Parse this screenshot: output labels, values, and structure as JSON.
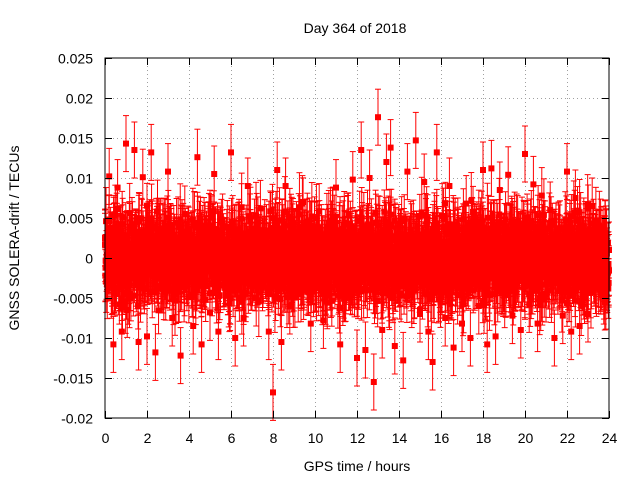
{
  "chart_data": {
    "type": "scatter",
    "title": "Day 364 of 2018",
    "xlabel": "GPS time / hours",
    "ylabel": "GNSS SOLERA-drift / TECUs",
    "xlim": [
      0,
      24
    ],
    "ylim": [
      -0.02,
      0.025
    ],
    "x_ticks": [
      0,
      2,
      4,
      6,
      8,
      10,
      12,
      14,
      16,
      18,
      20,
      22,
      24
    ],
    "x_tick_labels": [
      "0",
      "2",
      "4",
      "6",
      "8",
      "10",
      "12",
      "14",
      "16",
      "18",
      "20",
      "22",
      "24"
    ],
    "y_ticks": [
      -0.02,
      -0.015,
      -0.01,
      -0.005,
      0,
      0.005,
      0.01,
      0.015,
      0.02,
      0.025
    ],
    "y_tick_labels": [
      "-0.02",
      "-0.015",
      "-0.01",
      "-0.005",
      "0",
      "0.005",
      "0.01",
      "0.015",
      "0.02",
      "0.025"
    ],
    "grid": true,
    "legend": "none",
    "series_color": "#ff0000",
    "marker": "square",
    "sampling_interval_hours": 0.0083333,
    "error_bars": true,
    "series": [
      {
        "x": [
          0.0,
          0.2,
          0.4,
          0.6,
          0.8,
          1.0,
          1.2,
          1.4,
          1.6,
          1.8,
          2.0,
          2.2,
          2.4,
          2.6,
          2.8,
          3.0,
          3.2,
          3.4,
          3.6,
          3.8,
          4.0,
          4.2,
          4.4,
          4.6,
          4.8,
          5.0,
          5.2,
          5.4,
          5.6,
          5.8,
          6.0,
          6.2,
          6.4,
          6.6,
          6.8,
          7.0,
          7.2,
          7.4,
          7.6,
          7.8,
          8.0,
          8.2,
          8.4,
          8.6,
          8.8,
          9.0,
          9.2,
          9.4,
          9.6,
          9.8,
          10.0,
          10.2,
          10.4,
          10.6,
          10.8,
          11.0,
          11.2,
          11.4,
          11.6,
          11.8,
          12.0,
          12.2,
          12.4,
          12.6,
          12.8,
          13.0,
          13.2,
          13.4,
          13.6,
          13.8,
          14.0,
          14.2,
          14.4,
          14.6,
          14.8,
          15.0,
          15.2,
          15.4,
          15.6,
          15.8,
          16.0,
          16.2,
          16.4,
          16.6,
          16.8,
          17.0,
          17.2,
          17.4,
          17.6,
          17.8,
          18.0,
          18.2,
          18.4,
          18.6,
          18.8,
          19.0,
          19.2,
          19.4,
          19.6,
          19.8,
          20.0,
          20.2,
          20.4,
          20.6,
          20.8,
          21.0,
          21.2,
          21.4,
          21.6,
          21.8,
          22.0,
          22.2,
          22.4,
          22.6,
          22.8,
          23.0,
          23.2,
          23.4,
          23.6,
          23.8,
          24.0
        ],
        "y": [
          0.0025,
          0.0102,
          -0.0108,
          0.0088,
          -0.0092,
          0.0143,
          0.0012,
          0.0135,
          -0.0105,
          0.0101,
          -0.0098,
          0.0132,
          -0.0118,
          0.0025,
          -0.0042,
          0.0108,
          -0.0075,
          0.0015,
          -0.0122,
          0.0055,
          0.0002,
          -0.0085,
          0.0126,
          -0.0108,
          0.0018,
          -0.0068,
          0.0105,
          -0.0092,
          0.0045,
          0.0011,
          0.0132,
          -0.01,
          0.0035,
          -0.0075,
          0.009,
          0.0021,
          -0.005,
          0.0062,
          0.001,
          -0.0092,
          -0.0168,
          0.011,
          -0.0105,
          0.009,
          -0.006,
          0.0025,
          -0.0045,
          0.0068,
          0.0005,
          -0.0082,
          0.0015,
          0.0058,
          -0.0078,
          0.0032,
          -0.0012,
          0.0088,
          -0.0108,
          0.0042,
          -0.003,
          0.0098,
          -0.0125,
          0.0135,
          -0.0115,
          0.01,
          -0.0155,
          0.0176,
          -0.009,
          0.012,
          0.0138,
          -0.011,
          0.0015,
          -0.0128,
          0.0108,
          -0.0045,
          0.0147,
          -0.007,
          0.0095,
          -0.0092,
          -0.013,
          0.0132,
          0.0018,
          -0.0075,
          0.009,
          -0.0112,
          0.004,
          -0.0082,
          0.0068,
          -0.01,
          0.0032,
          -0.006,
          0.011,
          -0.0108,
          0.0112,
          -0.0098,
          0.0085,
          -0.0032,
          0.0104,
          -0.0072,
          0.0045,
          -0.009,
          0.013,
          -0.0058,
          0.0092,
          -0.0082,
          0.0078,
          -0.0045,
          0.006,
          -0.01,
          0.0035,
          -0.0072,
          0.0108,
          -0.0092,
          0.0075,
          -0.0085,
          0.004,
          -0.007,
          0.0065,
          -0.0038,
          0.0025,
          -0.0055,
          0.001
        ],
        "error": 0.0035
      }
    ]
  }
}
